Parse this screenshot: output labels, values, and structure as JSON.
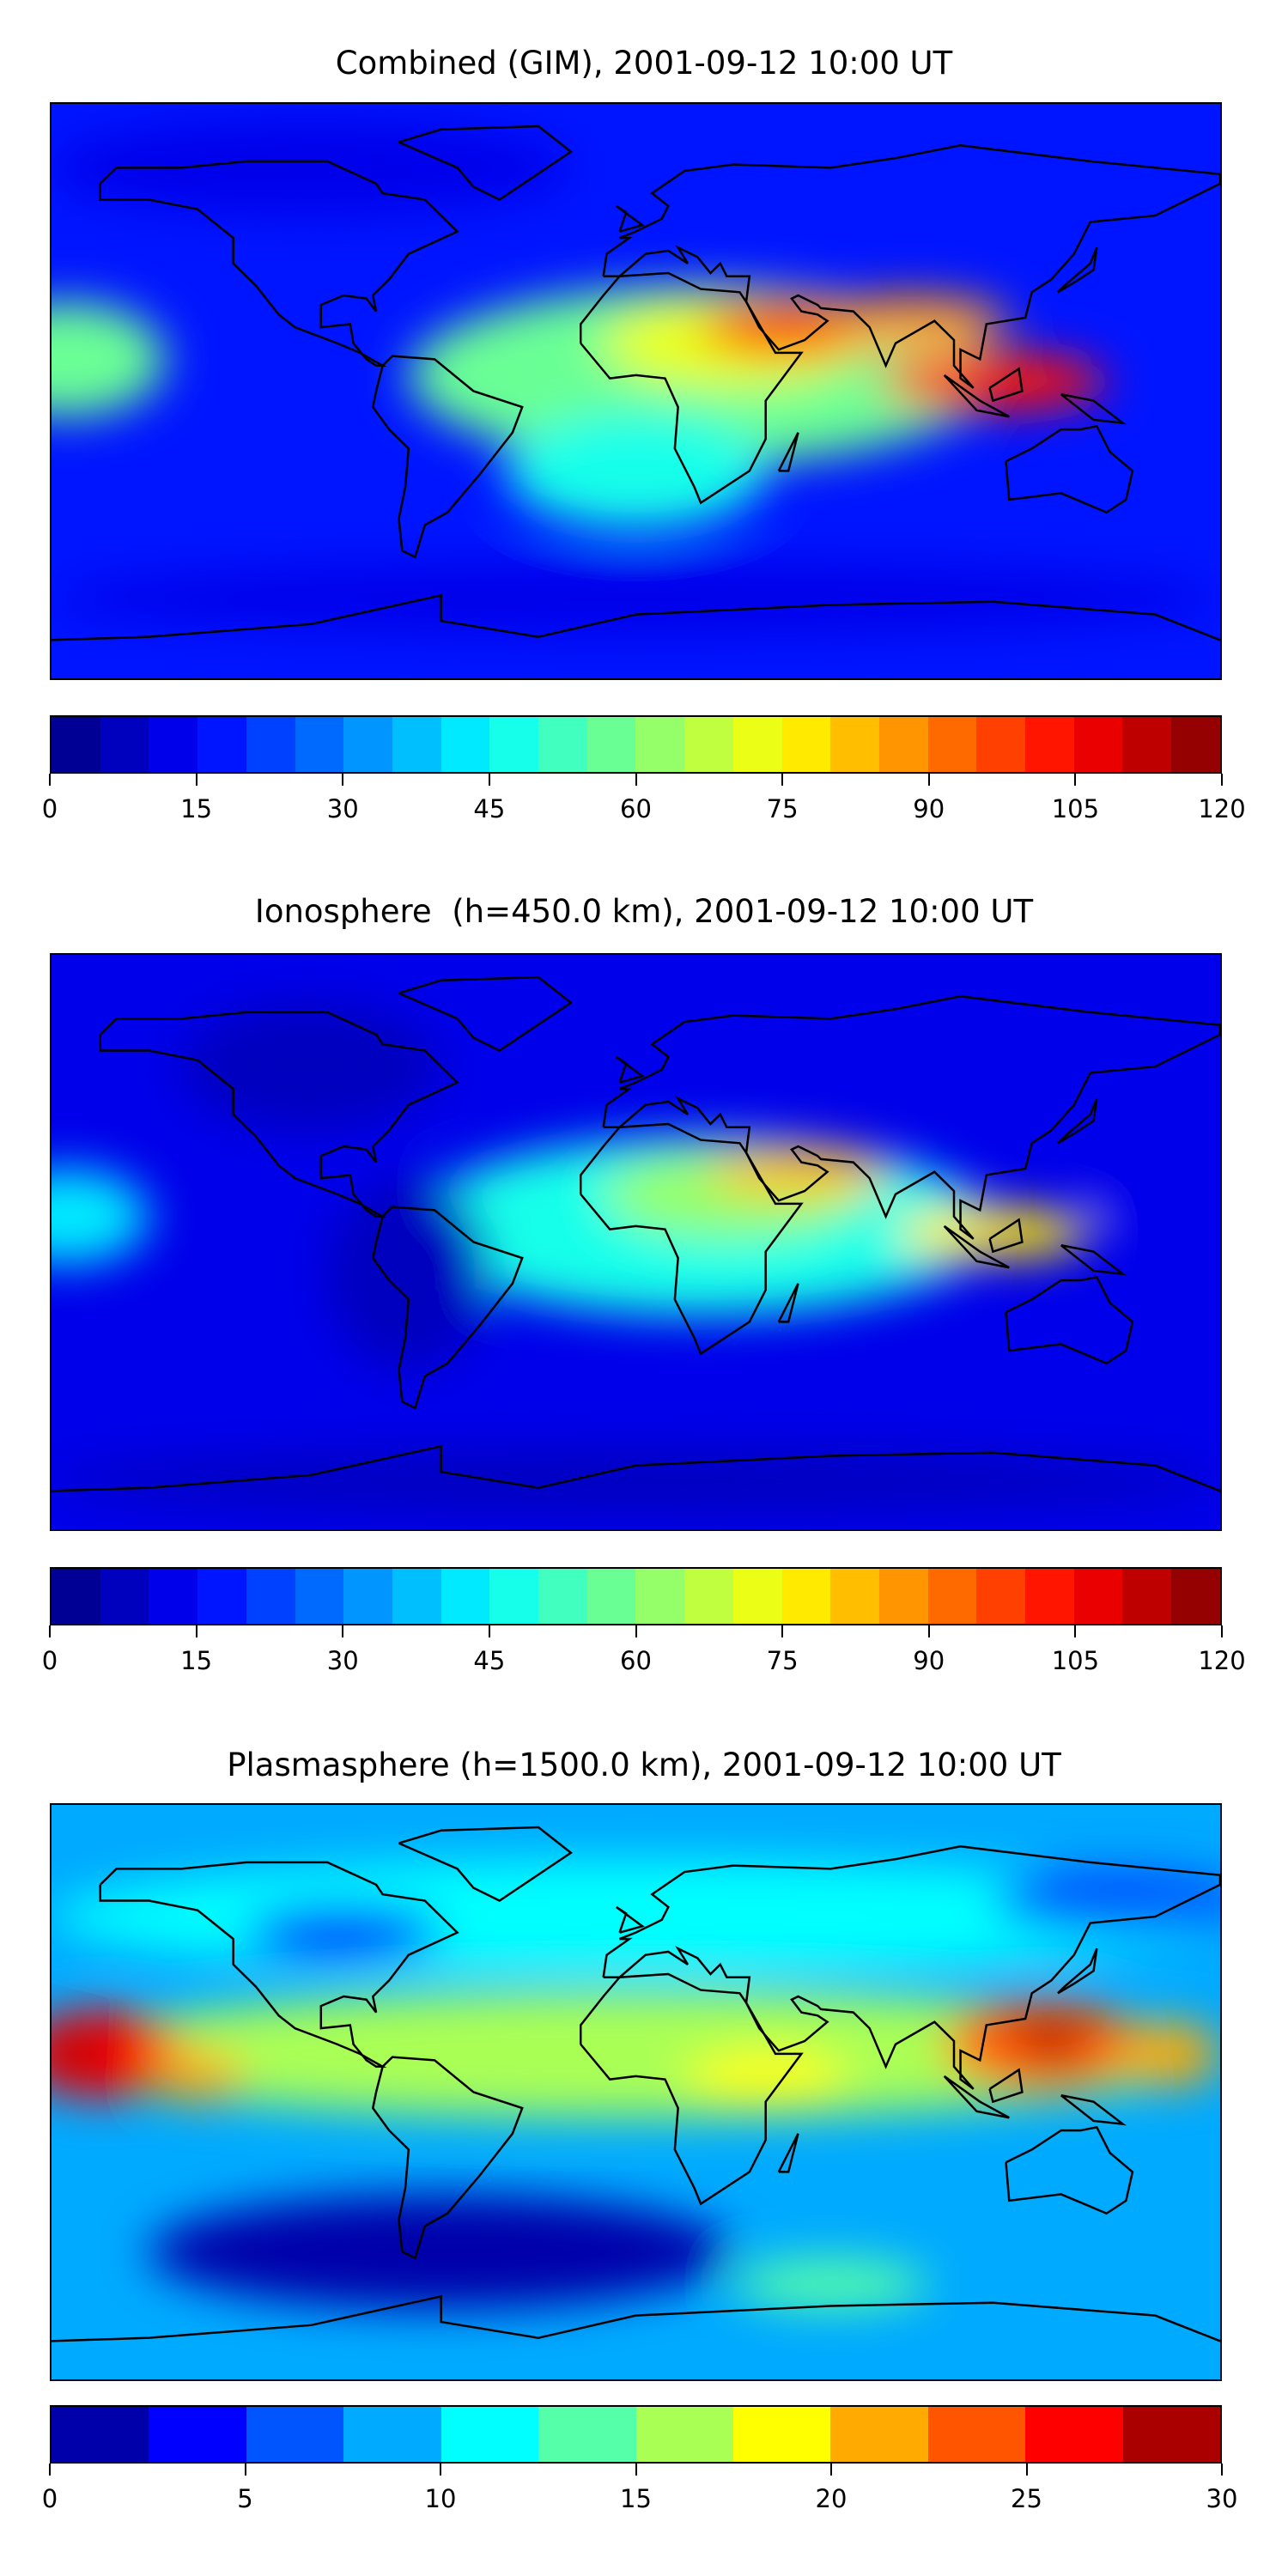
{
  "chart_data": [
    {
      "type": "heatmap",
      "title": "Combined (GIM), 2001-09-12 10:00 UT",
      "colormap": "jet",
      "levels_min": 0,
      "levels_max": 120,
      "levels_step": 5,
      "colorbar_ticks": [
        "0",
        "15",
        "30",
        "45",
        "60",
        "75",
        "90",
        "105",
        "120"
      ],
      "background_value": 18,
      "features": [
        {
          "lon": 20,
          "lat": 5,
          "rx": 90,
          "ry": 28,
          "value": 55
        },
        {
          "lon": -175,
          "lat": 10,
          "rx": 30,
          "ry": 18,
          "value": 58
        },
        {
          "lon": 0,
          "lat": -25,
          "rx": 40,
          "ry": 18,
          "value": 48
        },
        {
          "lon": 30,
          "lat": 15,
          "rx": 40,
          "ry": 14,
          "value": 72
        },
        {
          "lon": 50,
          "lat": 20,
          "rx": 30,
          "ry": 9,
          "value": 95
        },
        {
          "lon": 110,
          "lat": 3,
          "rx": 35,
          "ry": 9,
          "value": 100
        },
        {
          "lon": 85,
          "lat": 22,
          "rx": 30,
          "ry": 8,
          "value": 85
        },
        {
          "lon": -100,
          "lat": 70,
          "rx": 80,
          "ry": 15,
          "value": 12
        },
        {
          "lon": 0,
          "lat": -65,
          "rx": 180,
          "ry": 12,
          "value": 14
        }
      ]
    },
    {
      "type": "heatmap",
      "title": "Ionosphere  (h=450.0 km), 2001-09-12 10:00 UT",
      "colormap": "jet",
      "levels_min": 0,
      "levels_max": 120,
      "levels_step": 5,
      "colorbar_ticks": [
        "0",
        "15",
        "30",
        "45",
        "60",
        "75",
        "90",
        "105",
        "120"
      ],
      "background_value": 14,
      "features": [
        {
          "lon": 20,
          "lat": 5,
          "rx": 90,
          "ry": 28,
          "value": 48
        },
        {
          "lon": -175,
          "lat": 8,
          "rx": 25,
          "ry": 15,
          "value": 40
        },
        {
          "lon": 30,
          "lat": 15,
          "rx": 40,
          "ry": 14,
          "value": 62
        },
        {
          "lon": 50,
          "lat": 22,
          "rx": 28,
          "ry": 8,
          "value": 82
        },
        {
          "lon": 110,
          "lat": 3,
          "rx": 30,
          "ry": 8,
          "value": 78
        },
        {
          "lon": -70,
          "lat": -10,
          "rx": 25,
          "ry": 30,
          "value": 5
        },
        {
          "lon": -100,
          "lat": 55,
          "rx": 40,
          "ry": 20,
          "value": 6
        },
        {
          "lon": 150,
          "lat": 12,
          "rx": 12,
          "ry": 5,
          "value": 10
        },
        {
          "lon": 0,
          "lat": -75,
          "rx": 180,
          "ry": 10,
          "value": 6
        }
      ]
    },
    {
      "type": "heatmap",
      "title": "Plasmasphere (h=1500.0 km), 2001-09-12 10:00 UT",
      "colormap": "jet",
      "levels_min": 0,
      "levels_max": 30,
      "levels_step": 2.5,
      "colorbar_ticks": [
        "0",
        "5",
        "10",
        "15",
        "20",
        "25",
        "30"
      ],
      "background_value": 9,
      "features": [
        {
          "lon": 0,
          "lat": 12,
          "rx": 180,
          "ry": 20,
          "value": 16
        },
        {
          "lon": 0,
          "lat": 55,
          "rx": 180,
          "ry": 18,
          "value": 11
        },
        {
          "lon": -165,
          "lat": 12,
          "rx": 25,
          "ry": 14,
          "value": 25
        },
        {
          "lon": -172,
          "lat": 12,
          "rx": 10,
          "ry": 6,
          "value": 29
        },
        {
          "lon": -135,
          "lat": 5,
          "rx": 14,
          "ry": 8,
          "value": 22
        },
        {
          "lon": 125,
          "lat": 15,
          "rx": 30,
          "ry": 14,
          "value": 24
        },
        {
          "lon": 128,
          "lat": 16,
          "rx": 10,
          "ry": 6,
          "value": 28
        },
        {
          "lon": 165,
          "lat": 12,
          "rx": 15,
          "ry": 10,
          "value": 21
        },
        {
          "lon": 40,
          "lat": 5,
          "rx": 25,
          "ry": 8,
          "value": 19
        },
        {
          "lon": -60,
          "lat": -50,
          "rx": 90,
          "ry": 18,
          "value": 2
        },
        {
          "lon": 60,
          "lat": -60,
          "rx": 30,
          "ry": 8,
          "value": 14
        },
        {
          "lon": -90,
          "lat": 50,
          "rx": 30,
          "ry": 8,
          "value": 4
        },
        {
          "lon": 150,
          "lat": 60,
          "rx": 40,
          "ry": 10,
          "value": 6
        }
      ]
    }
  ]
}
